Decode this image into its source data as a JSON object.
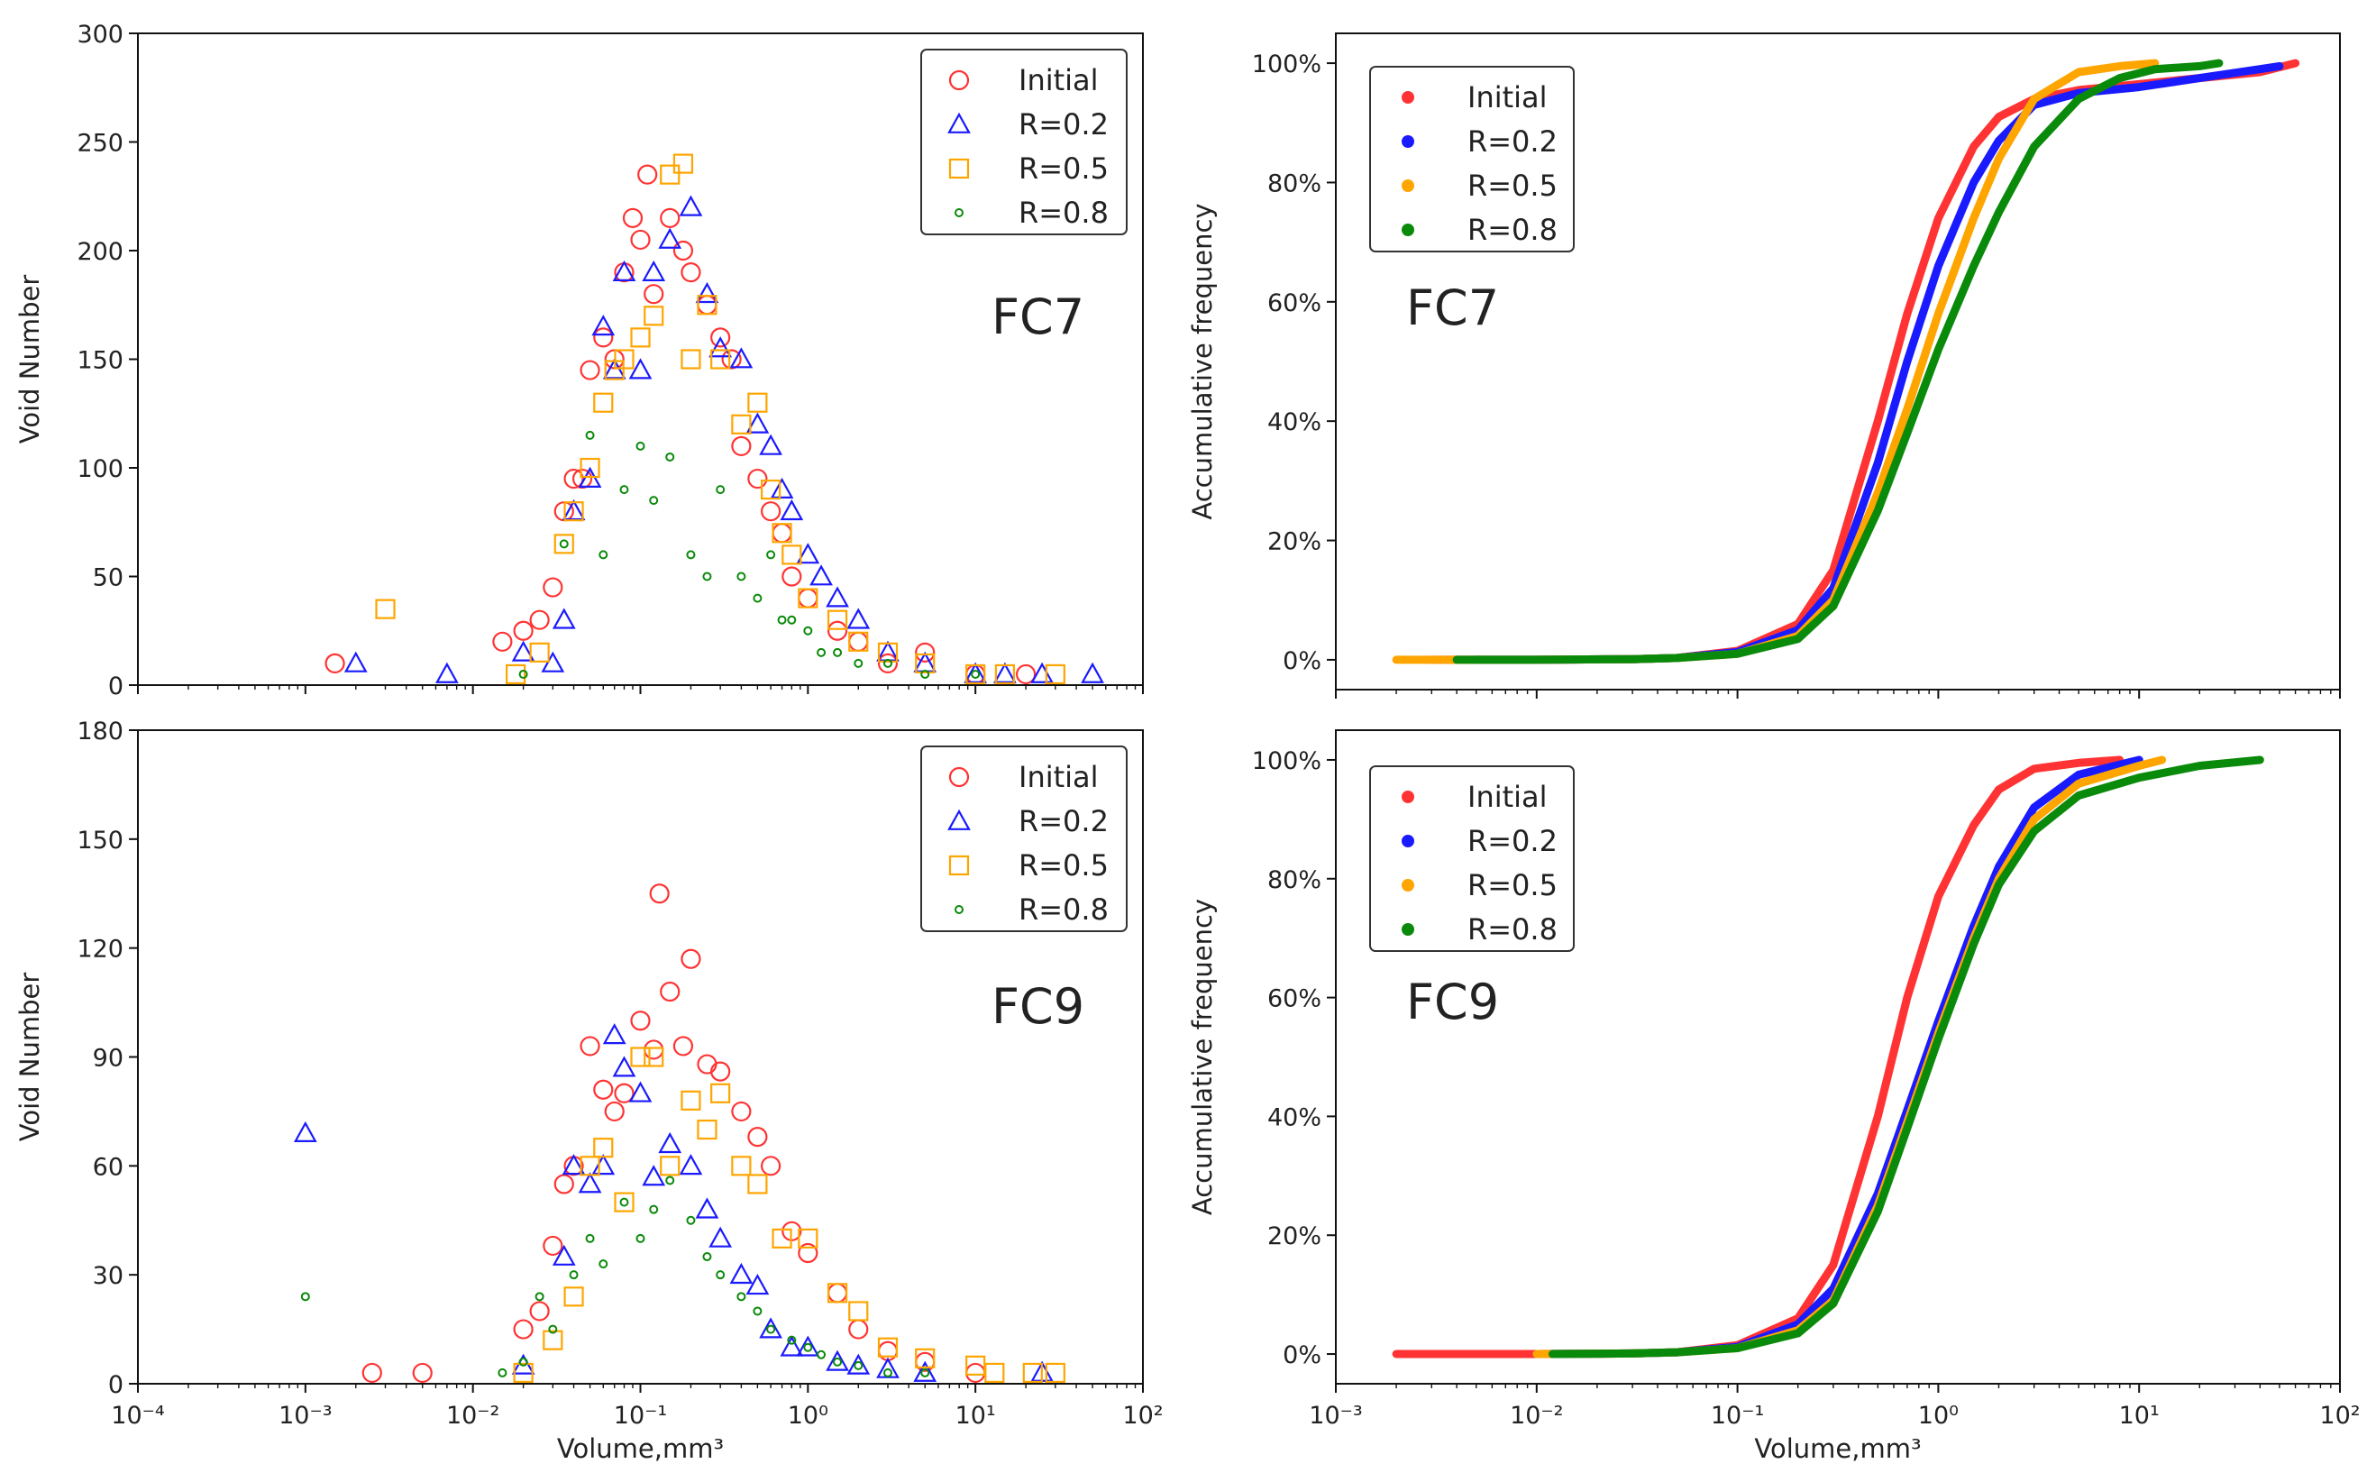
{
  "colors": {
    "initial": "#ff3333",
    "r02": "#1a1aff",
    "r05": "#ffa500",
    "r08": "#0a8a0a"
  },
  "chart_data": [
    {
      "type": "scatter",
      "panel_label": "FC7",
      "xlabel": "",
      "ylabel": "Void Number",
      "xscale": "log",
      "xlim": [
        0.0001,
        100
      ],
      "ylim": [
        0,
        300
      ],
      "yticks": [
        "0",
        "50",
        "100",
        "150",
        "200",
        "250",
        "300"
      ],
      "legend": {
        "placement": "top-right"
      },
      "series": [
        {
          "name": "Initial",
          "marker": "circle",
          "x": [
            0.0015,
            0.015,
            0.02,
            0.025,
            0.03,
            0.035,
            0.04,
            0.045,
            0.05,
            0.06,
            0.07,
            0.08,
            0.09,
            0.1,
            0.11,
            0.12,
            0.15,
            0.18,
            0.2,
            0.25,
            0.3,
            0.35,
            0.4,
            0.5,
            0.6,
            0.7,
            0.8,
            1,
            1.5,
            2,
            3,
            5,
            10,
            20
          ],
          "y": [
            10,
            20,
            25,
            30,
            45,
            80,
            95,
            95,
            145,
            160,
            150,
            190,
            215,
            205,
            235,
            180,
            215,
            200,
            190,
            175,
            160,
            150,
            110,
            95,
            80,
            70,
            50,
            40,
            25,
            20,
            10,
            15,
            5,
            5
          ]
        },
        {
          "name": "R=0.2",
          "marker": "triangle",
          "x": [
            0.002,
            0.007,
            0.02,
            0.03,
            0.035,
            0.04,
            0.05,
            0.06,
            0.07,
            0.08,
            0.1,
            0.12,
            0.15,
            0.2,
            0.25,
            0.3,
            0.4,
            0.5,
            0.6,
            0.7,
            0.8,
            1,
            1.2,
            1.5,
            2,
            3,
            5,
            10,
            15,
            25,
            50
          ],
          "y": [
            10,
            5,
            15,
            10,
            30,
            80,
            95,
            165,
            145,
            190,
            145,
            190,
            205,
            220,
            180,
            155,
            150,
            120,
            110,
            90,
            80,
            60,
            50,
            40,
            30,
            15,
            10,
            5,
            5,
            5,
            5
          ]
        },
        {
          "name": "R=0.5",
          "marker": "square",
          "x": [
            0.003,
            0.018,
            0.025,
            0.035,
            0.04,
            0.05,
            0.06,
            0.07,
            0.08,
            0.1,
            0.12,
            0.15,
            0.18,
            0.2,
            0.25,
            0.3,
            0.4,
            0.5,
            0.6,
            0.7,
            0.8,
            1,
            1.5,
            2,
            3,
            5,
            10,
            15,
            30
          ],
          "y": [
            35,
            5,
            15,
            65,
            80,
            100,
            130,
            145,
            150,
            160,
            170,
            235,
            240,
            150,
            175,
            150,
            120,
            130,
            90,
            70,
            60,
            40,
            30,
            20,
            15,
            10,
            5,
            5,
            5
          ]
        },
        {
          "name": "R=0.8",
          "marker": "dot",
          "x": [
            0.02,
            0.035,
            0.05,
            0.06,
            0.08,
            0.1,
            0.12,
            0.15,
            0.2,
            0.25,
            0.3,
            0.4,
            0.5,
            0.6,
            0.7,
            0.8,
            1,
            1.2,
            1.5,
            2,
            3,
            5,
            10
          ],
          "y": [
            5,
            65,
            115,
            60,
            90,
            110,
            85,
            105,
            60,
            50,
            90,
            50,
            40,
            60,
            30,
            30,
            25,
            15,
            15,
            10,
            10,
            5,
            5
          ]
        }
      ]
    },
    {
      "type": "line",
      "panel_label": "FC7",
      "xlabel": "",
      "ylabel": "Accumulative frequency",
      "xscale": "log",
      "xlim": [
        0.001,
        100
      ],
      "ylim": [
        -0.05,
        1.05
      ],
      "yticks": [
        "0%",
        "20%",
        "40%",
        "60%",
        "80%",
        "100%"
      ],
      "legend": {
        "placement": "top-left"
      },
      "series": [
        {
          "name": "Initial",
          "x": [
            0.003,
            0.01,
            0.03,
            0.05,
            0.1,
            0.2,
            0.3,
            0.5,
            0.7,
            1,
            1.5,
            2,
            3,
            5,
            10,
            20,
            40,
            60
          ],
          "y": [
            0,
            0,
            0.001,
            0.003,
            0.015,
            0.06,
            0.15,
            0.4,
            0.58,
            0.74,
            0.86,
            0.91,
            0.94,
            0.955,
            0.965,
            0.975,
            0.985,
            1
          ]
        },
        {
          "name": "R=0.2",
          "x": [
            0.005,
            0.01,
            0.03,
            0.05,
            0.1,
            0.2,
            0.3,
            0.5,
            0.7,
            1,
            1.5,
            2,
            3,
            5,
            10,
            20,
            40,
            50
          ],
          "y": [
            0,
            0,
            0.001,
            0.003,
            0.013,
            0.05,
            0.12,
            0.33,
            0.5,
            0.66,
            0.8,
            0.87,
            0.93,
            0.95,
            0.96,
            0.975,
            0.99,
            0.995
          ]
        },
        {
          "name": "R=0.5",
          "x": [
            0.002,
            0.01,
            0.03,
            0.05,
            0.1,
            0.2,
            0.3,
            0.5,
            0.7,
            1,
            1.5,
            2,
            3,
            5,
            8,
            12
          ],
          "y": [
            0,
            0,
            0.001,
            0.003,
            0.01,
            0.04,
            0.1,
            0.28,
            0.42,
            0.58,
            0.74,
            0.84,
            0.94,
            0.985,
            0.995,
            1
          ]
        },
        {
          "name": "R=0.8",
          "x": [
            0.004,
            0.01,
            0.03,
            0.05,
            0.1,
            0.2,
            0.3,
            0.5,
            0.7,
            1,
            1.5,
            2,
            3,
            5,
            8,
            12,
            20,
            25
          ],
          "y": [
            0,
            0,
            0.001,
            0.003,
            0.01,
            0.035,
            0.09,
            0.25,
            0.38,
            0.52,
            0.66,
            0.75,
            0.86,
            0.94,
            0.975,
            0.99,
            0.995,
            1
          ]
        }
      ]
    },
    {
      "type": "scatter",
      "panel_label": "FC9",
      "xlabel": "Volume,mm³",
      "ylabel": "Void Number",
      "xscale": "log",
      "xlim": [
        0.0001,
        100
      ],
      "ylim": [
        0,
        180
      ],
      "xticks": [
        "10⁻⁴",
        "10⁻³",
        "10⁻²",
        "10⁻¹",
        "10⁰",
        "10¹",
        "10²"
      ],
      "yticks": [
        "0",
        "30",
        "60",
        "90",
        "120",
        "150",
        "180"
      ],
      "legend": {
        "placement": "top-right"
      },
      "series": [
        {
          "name": "Initial",
          "marker": "circle",
          "x": [
            0.0025,
            0.005,
            0.02,
            0.025,
            0.03,
            0.035,
            0.04,
            0.05,
            0.06,
            0.07,
            0.08,
            0.1,
            0.12,
            0.13,
            0.15,
            0.18,
            0.2,
            0.25,
            0.3,
            0.4,
            0.5,
            0.6,
            0.8,
            1,
            1.5,
            2,
            3,
            5,
            10
          ],
          "y": [
            3,
            3,
            15,
            20,
            38,
            55,
            60,
            93,
            81,
            75,
            80,
            100,
            92,
            135,
            108,
            93,
            117,
            88,
            86,
            75,
            68,
            60,
            42,
            36,
            25,
            15,
            9,
            6,
            3
          ]
        },
        {
          "name": "R=0.2",
          "marker": "triangle",
          "x": [
            0.001,
            0.02,
            0.035,
            0.04,
            0.05,
            0.06,
            0.07,
            0.08,
            0.1,
            0.12,
            0.15,
            0.2,
            0.25,
            0.3,
            0.4,
            0.5,
            0.6,
            0.8,
            1,
            1.5,
            2,
            3,
            5,
            25
          ],
          "y": [
            69,
            5,
            35,
            60,
            55,
            60,
            96,
            87,
            80,
            57,
            66,
            60,
            48,
            40,
            30,
            27,
            15,
            10,
            10,
            6,
            5,
            4,
            3,
            3
          ]
        },
        {
          "name": "R=0.5",
          "marker": "square",
          "x": [
            0.02,
            0.03,
            0.04,
            0.05,
            0.06,
            0.08,
            0.1,
            0.12,
            0.15,
            0.2,
            0.25,
            0.3,
            0.4,
            0.5,
            0.7,
            1,
            1.5,
            2,
            3,
            5,
            10,
            13,
            22,
            30
          ],
          "y": [
            3,
            12,
            24,
            60,
            65,
            50,
            90,
            90,
            60,
            78,
            70,
            80,
            60,
            55,
            40,
            40,
            25,
            20,
            10,
            7,
            5,
            3,
            3,
            3
          ]
        },
        {
          "name": "R=0.8",
          "marker": "dot",
          "x": [
            0.001,
            0.015,
            0.02,
            0.025,
            0.03,
            0.04,
            0.05,
            0.06,
            0.08,
            0.1,
            0.12,
            0.15,
            0.2,
            0.25,
            0.3,
            0.4,
            0.5,
            0.6,
            0.8,
            1,
            1.2,
            1.5,
            2,
            3,
            5
          ],
          "y": [
            24,
            3,
            6,
            24,
            15,
            30,
            40,
            33,
            50,
            40,
            48,
            56,
            45,
            35,
            30,
            24,
            20,
            15,
            12,
            10,
            8,
            6,
            5,
            3,
            3
          ]
        }
      ]
    },
    {
      "type": "line",
      "panel_label": "FC9",
      "xlabel": "Volume,mm³",
      "ylabel": "Accumulative frequency",
      "xscale": "log",
      "xlim": [
        0.001,
        100
      ],
      "ylim": [
        -0.05,
        1.05
      ],
      "xticks": [
        "10⁻³",
        "10⁻²",
        "10⁻¹",
        "10⁰",
        "10¹",
        "10²"
      ],
      "yticks": [
        "0%",
        "20%",
        "40%",
        "60%",
        "80%",
        "100%"
      ],
      "legend": {
        "placement": "top-left"
      },
      "series": [
        {
          "name": "Initial",
          "x": [
            0.002,
            0.01,
            0.03,
            0.05,
            0.1,
            0.2,
            0.3,
            0.5,
            0.7,
            1,
            1.5,
            2,
            3,
            5,
            8
          ],
          "y": [
            0,
            0,
            0.001,
            0.003,
            0.015,
            0.06,
            0.15,
            0.4,
            0.6,
            0.77,
            0.89,
            0.95,
            0.985,
            0.995,
            1
          ]
        },
        {
          "name": "R=0.2",
          "x": [
            0.01,
            0.03,
            0.05,
            0.1,
            0.2,
            0.3,
            0.5,
            0.7,
            1,
            1.5,
            2,
            3,
            5,
            10
          ],
          "y": [
            0,
            0.001,
            0.003,
            0.012,
            0.05,
            0.11,
            0.27,
            0.41,
            0.56,
            0.72,
            0.82,
            0.92,
            0.975,
            1
          ]
        },
        {
          "name": "R=0.5",
          "x": [
            0.01,
            0.03,
            0.05,
            0.1,
            0.2,
            0.3,
            0.5,
            0.7,
            1,
            1.5,
            2,
            3,
            5,
            10,
            13
          ],
          "y": [
            0,
            0.001,
            0.003,
            0.01,
            0.04,
            0.09,
            0.25,
            0.39,
            0.54,
            0.7,
            0.8,
            0.9,
            0.96,
            0.99,
            1
          ]
        },
        {
          "name": "R=0.8",
          "x": [
            0.012,
            0.03,
            0.05,
            0.1,
            0.2,
            0.3,
            0.5,
            0.7,
            1,
            1.5,
            2,
            3,
            5,
            10,
            20,
            40
          ],
          "y": [
            0,
            0.001,
            0.003,
            0.01,
            0.035,
            0.085,
            0.24,
            0.38,
            0.53,
            0.69,
            0.79,
            0.88,
            0.94,
            0.97,
            0.99,
            1
          ]
        }
      ]
    }
  ]
}
